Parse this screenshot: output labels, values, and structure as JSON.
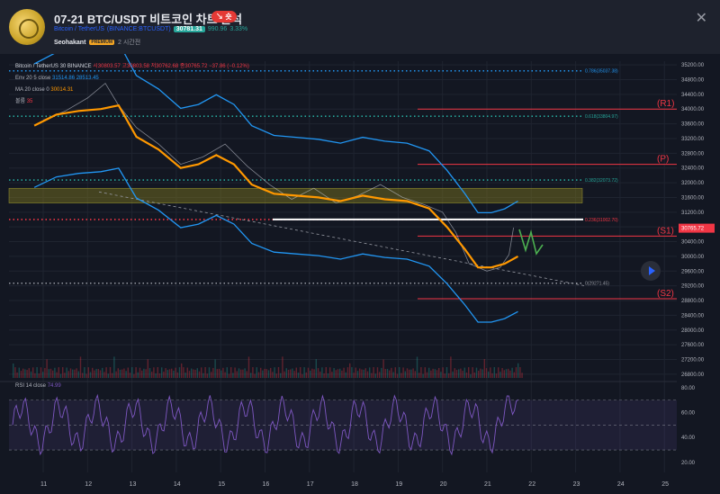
{
  "header": {
    "title": "07-21 BTC/USDT 비트코인 차트 분석",
    "idea_badge": "↘ 숏",
    "symbol_name": "Bitcoin / TetherUS",
    "exchange_symbol": "(BINANCE:BTCUSDT)",
    "price": "30781.31",
    "change": "990.96",
    "change_pct": "3.33%",
    "author": "Seohakant",
    "author_badge": "PREMIUM",
    "time_ago": "2 시간전",
    "close_icon": "close-icon"
  },
  "legend": {
    "symbol_line": "Bitcoin / TetherUS  30  BINANCE",
    "ohlc": "시30803.57  고30803.58  저30762.68  종30765.72  −37.86 (−0.12%)",
    "env_label": "Env 20 5 close",
    "env_values": "31514.86  28513.45",
    "ma_label": "MA 20 close 0",
    "ma_value": "30014.31",
    "vol_label": "볼륨",
    "vol_value": "35",
    "rsi_label": "RSI 14 close",
    "rsi_value": "74.99"
  },
  "chart_data": {
    "type": "line",
    "x_ticks": [
      "11",
      "12",
      "13",
      "14",
      "15",
      "16",
      "17",
      "18",
      "19",
      "20",
      "21",
      "22",
      "23",
      "24",
      "25"
    ],
    "y_ticks": [
      "35200.00",
      "34800.00",
      "34400.00",
      "34000.00",
      "33600.00",
      "33200.00",
      "32800.00",
      "32400.00",
      "32000.00",
      "31600.00",
      "31200.00",
      "30800.00",
      "30400.00",
      "30000.00",
      "29600.00",
      "29200.00",
      "28800.00",
      "28400.00",
      "28000.00",
      "27600.00",
      "27200.00",
      "26800.00"
    ],
    "rsi_y_ticks": [
      "80.00",
      "60.00",
      "40.00",
      "20.00"
    ],
    "current_price_label": "30765.72",
    "fib_levels": [
      {
        "label": "0.786(35037.38)",
        "value": 35037.38
      },
      {
        "label": "0.618(33804.97)",
        "value": 33804.97
      },
      {
        "label": "0.382(32073.72)",
        "value": 32073.72
      },
      {
        "label": "0.236(31002.70)",
        "value": 31002.7
      },
      {
        "label": "0(29271.45)",
        "value": 29271.45
      }
    ],
    "levels": [
      {
        "label": "(R1)",
        "value": 34000
      },
      {
        "label": "(P)",
        "value": 32500
      },
      {
        "label": "(S1)",
        "value": 30550
      },
      {
        "label": "(S2)",
        "value": 28850
      }
    ],
    "colors": {
      "ma": "#ff9800",
      "envelope": "#2196f3",
      "level": "#f23645",
      "fib": "#26a69a",
      "rsi": "#7e57c2"
    }
  }
}
